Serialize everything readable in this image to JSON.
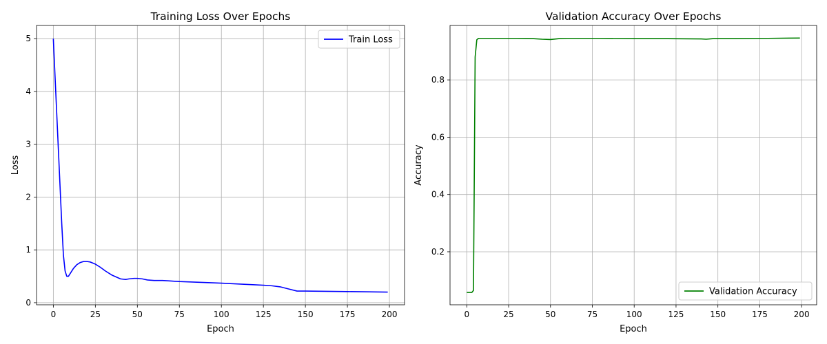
{
  "chart_data": [
    {
      "type": "line",
      "title": "Training Loss Over Epochs",
      "xlabel": "Epoch",
      "ylabel": "Loss",
      "xlim": [
        -10,
        209
      ],
      "ylim": [
        -0.04,
        5.25
      ],
      "xticks": [
        0,
        25,
        50,
        75,
        100,
        125,
        150,
        175,
        200
      ],
      "yticks": [
        0,
        1,
        2,
        3,
        4,
        5
      ],
      "grid": true,
      "legend": "top-right",
      "series": [
        {
          "name": "Train Loss",
          "color": "#0000ff",
          "x": [
            0,
            2,
            4,
            5,
            6,
            7,
            8,
            9,
            10,
            12,
            14,
            16,
            18,
            20,
            22,
            25,
            28,
            31,
            35,
            40,
            43,
            45,
            48,
            50,
            53,
            56,
            60,
            65,
            70,
            75,
            100,
            125,
            130,
            135,
            140,
            145,
            150,
            175,
            199
          ],
          "y": [
            5.0,
            3.6,
            2.2,
            1.5,
            0.9,
            0.6,
            0.5,
            0.5,
            0.55,
            0.65,
            0.72,
            0.76,
            0.78,
            0.78,
            0.77,
            0.73,
            0.67,
            0.6,
            0.52,
            0.45,
            0.44,
            0.45,
            0.46,
            0.46,
            0.45,
            0.43,
            0.42,
            0.42,
            0.41,
            0.4,
            0.37,
            0.33,
            0.32,
            0.3,
            0.26,
            0.22,
            0.22,
            0.21,
            0.2
          ]
        }
      ]
    },
    {
      "type": "line",
      "title": "Validation Accuracy Over Epochs",
      "xlabel": "Epoch",
      "ylabel": "Accuracy",
      "xlim": [
        -10,
        209
      ],
      "ylim": [
        0.015,
        0.99
      ],
      "xticks": [
        0,
        25,
        50,
        75,
        100,
        125,
        150,
        175,
        200
      ],
      "yticks": [
        0.2,
        0.4,
        0.6,
        0.8
      ],
      "grid": true,
      "legend": "bottom-right",
      "series": [
        {
          "name": "Validation Accuracy",
          "color": "#008000",
          "x": [
            0,
            2,
            3,
            4,
            5,
            6,
            7,
            8,
            10,
            20,
            30,
            40,
            45,
            50,
            55,
            60,
            80,
            100,
            120,
            140,
            143,
            147,
            160,
            180,
            199
          ],
          "y": [
            0.058,
            0.058,
            0.058,
            0.065,
            0.88,
            0.94,
            0.945,
            0.945,
            0.945,
            0.945,
            0.945,
            0.944,
            0.942,
            0.941,
            0.944,
            0.945,
            0.945,
            0.944,
            0.944,
            0.943,
            0.942,
            0.944,
            0.944,
            0.945,
            0.946
          ]
        }
      ]
    }
  ]
}
